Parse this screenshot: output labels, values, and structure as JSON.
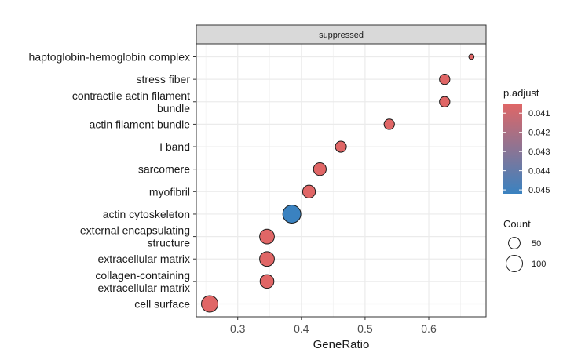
{
  "chart_data": {
    "type": "scatter",
    "subtype": "dot-plot",
    "facet_label": "suppressed",
    "xlabel": "GeneRatio",
    "ylabel": "",
    "xlim": [
      0.235,
      0.69
    ],
    "x_ticks": [
      "0.3",
      "0.4",
      "0.5",
      "0.6"
    ],
    "x_tick_values": [
      0.3,
      0.4,
      0.5,
      0.6
    ],
    "grid": true,
    "legend_position": "right",
    "categories": [
      "haptoglobin-hemoglobin complex",
      "stress fiber",
      "contractile actin filament bundle",
      "actin filament bundle",
      "I band",
      "sarcomere",
      "myofibril",
      "actin cytoskeleton",
      "external encapsulating structure",
      "extracellular matrix",
      "collagen-containing extracellular matrix",
      "cell surface"
    ],
    "category_label_lines": [
      [
        "haptoglobin-hemoglobin complex"
      ],
      [
        "stress fiber"
      ],
      [
        "contractile actin filament",
        "bundle"
      ],
      [
        "actin filament bundle"
      ],
      [
        "I band"
      ],
      [
        "sarcomere"
      ],
      [
        "myofibril"
      ],
      [
        "actin cytoskeleton"
      ],
      [
        "external encapsulating",
        "structure"
      ],
      [
        "extracellular matrix"
      ],
      [
        "collagen-containing",
        "extracellular matrix"
      ],
      [
        "cell surface"
      ]
    ],
    "points": [
      {
        "term": "haptoglobin-hemoglobin complex",
        "x": 0.667,
        "count": 10,
        "p_adjust": 0.0405
      },
      {
        "term": "stress fiber",
        "x": 0.625,
        "count": 40,
        "p_adjust": 0.0405
      },
      {
        "term": "contractile actin filament bundle",
        "x": 0.625,
        "count": 40,
        "p_adjust": 0.0405
      },
      {
        "term": "actin filament bundle",
        "x": 0.538,
        "count": 40,
        "p_adjust": 0.0405
      },
      {
        "term": "I band",
        "x": 0.462,
        "count": 45,
        "p_adjust": 0.0405
      },
      {
        "term": "sarcomere",
        "x": 0.429,
        "count": 60,
        "p_adjust": 0.0405
      },
      {
        "term": "myofibril",
        "x": 0.412,
        "count": 60,
        "p_adjust": 0.0405
      },
      {
        "term": "actin cytoskeleton",
        "x": 0.385,
        "count": 120,
        "p_adjust": 0.0452
      },
      {
        "term": "external encapsulating structure",
        "x": 0.346,
        "count": 80,
        "p_adjust": 0.0405
      },
      {
        "term": "extracellular matrix",
        "x": 0.346,
        "count": 80,
        "p_adjust": 0.0405
      },
      {
        "term": "collagen-containing extracellular matrix",
        "x": 0.346,
        "count": 70,
        "p_adjust": 0.0405
      },
      {
        "term": "cell surface",
        "x": 0.256,
        "count": 100,
        "p_adjust": 0.0405
      }
    ],
    "color_legend": {
      "title": "p.adjust",
      "labels": [
        "0.041",
        "0.042",
        "0.043",
        "0.044",
        "0.045"
      ],
      "values": [
        0.041,
        0.042,
        0.043,
        0.044,
        0.045
      ],
      "range": [
        0.0405,
        0.0452
      ],
      "low_color": "#e06666",
      "high_color": "#3a82c0"
    },
    "size_legend": {
      "title": "Count",
      "labels": [
        "50",
        "100"
      ],
      "values": [
        50,
        100
      ]
    }
  }
}
